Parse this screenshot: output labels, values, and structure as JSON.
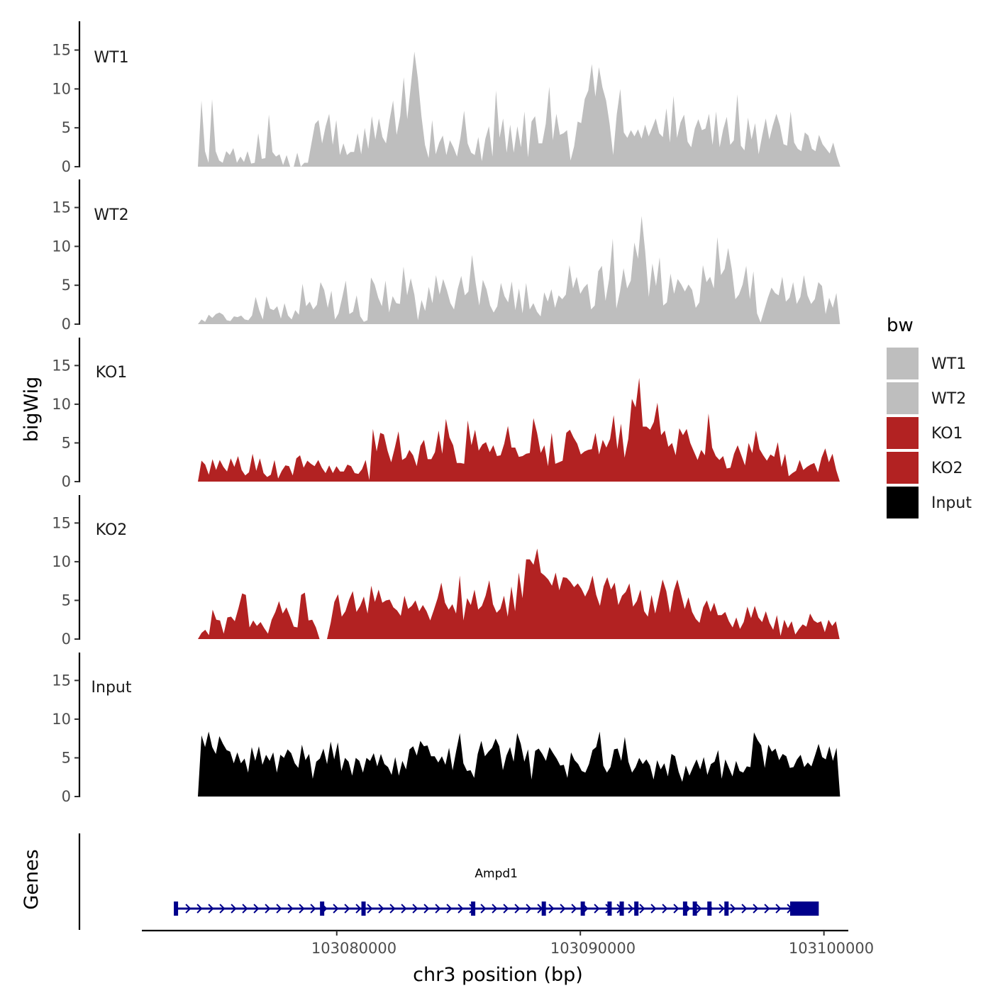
{
  "chart_data": {
    "type": "area",
    "y_axis_title": "bigWig",
    "x_axis_title": "chr3 position (bp)",
    "genes_axis_title": "Genes",
    "xlim": [
      103072000,
      103101000
    ],
    "ylim": [
      0,
      18.7
    ],
    "y_ticks": [
      0,
      5,
      10,
      15
    ],
    "x_ticks": [
      103080000,
      103090000,
      103100000
    ],
    "x_tick_labels": [
      "103080000",
      "103090000",
      "103100000"
    ],
    "legend": {
      "title": "bw",
      "entries": [
        {
          "label": "WT1",
          "color": "#bebebe"
        },
        {
          "label": "WT2",
          "color": "#bebebe"
        },
        {
          "label": "KO1",
          "color": "#b22222"
        },
        {
          "label": "KO2",
          "color": "#b22222"
        },
        {
          "label": "Input",
          "color": "#000000"
        }
      ]
    },
    "series": [
      {
        "name": "WT1",
        "color": "#bebebe",
        "x_start": 103074300,
        "x_end": 103101400,
        "values": [
          0,
          8.5,
          2,
          0.5,
          8.7,
          2,
          0.8,
          0.5,
          2,
          1.5,
          2.4,
          0.5,
          1.3,
          0.6,
          2,
          0.4,
          0.5,
          4.3,
          1,
          1.1,
          6.7,
          1.9,
          1.3,
          1.6,
          0.2,
          1.5,
          0,
          0,
          1.8,
          0,
          0.5,
          0.5,
          3,
          5.5,
          6,
          3,
          5.2,
          6.8,
          2.8,
          6,
          1.5,
          3,
          1.5,
          1.9,
          1.9,
          4.3,
          1.6,
          5,
          2.3,
          6.5,
          3.5,
          6.2,
          3.8,
          3,
          6,
          8.5,
          4.1,
          6.5,
          11.5,
          6.1,
          10.4,
          14.8,
          11.3,
          6.5,
          2.8,
          1.1,
          6,
          1.6,
          3.1,
          4,
          1.5,
          3.4,
          2.5,
          1.3,
          3.8,
          7.2,
          3,
          1.8,
          1.5,
          3.8,
          0.7,
          3.6,
          5.2,
          1.3,
          9.8,
          3.7,
          6.2,
          1.8,
          5.4,
          1.8,
          5.2,
          2.5,
          7.1,
          1.2,
          5.8,
          6.5,
          3,
          3,
          5.5,
          10.3,
          3.4,
          6.8,
          4.1,
          4.3,
          4.7,
          0.8,
          2.6,
          5.8,
          5.6,
          8.7,
          9.8,
          13.2,
          9,
          12.8,
          10.2,
          8.5,
          5.5,
          1.5,
          6.7,
          10,
          4.4,
          3.7,
          4.7,
          3.9,
          4.8,
          3.6,
          5.4,
          3.9,
          5,
          6.2,
          4.3,
          3.8,
          7.5,
          3.1,
          9.1,
          3.7,
          5.7,
          6.7,
          3.2,
          2.5,
          4.9,
          6.1,
          4.7,
          4.9,
          6.8,
          2.8,
          7.1,
          2.5,
          4.8,
          6.4,
          2.8,
          3.4,
          9.3,
          2.7,
          2.1,
          6.3,
          3.5,
          5.6,
          1.6,
          4,
          6.2,
          3.5,
          5.3,
          6.8,
          5.3,
          2.9,
          2.7,
          7.1,
          3.1,
          2.3,
          2,
          4.4,
          4,
          2.3,
          2,
          4.1,
          2.9,
          2.3,
          1.7,
          3.1,
          1.4,
          0,
          0,
          0,
          0,
          0,
          0
        ]
      },
      {
        "name": "WT2",
        "color": "#bebebe",
        "x_start": 103074300,
        "x_end": 103101400,
        "values": [
          0,
          0.6,
          0.3,
          1.2,
          0.8,
          1.3,
          1.5,
          1.2,
          0.5,
          0.4,
          1,
          0.9,
          1.1,
          0.6,
          0.5,
          1.1,
          3.5,
          1.8,
          0.6,
          3.6,
          2,
          1.8,
          2.3,
          0.7,
          2.7,
          1.1,
          0.6,
          1.8,
          1.2,
          5.2,
          2.3,
          2.9,
          1.9,
          2.5,
          5.4,
          4.4,
          2.1,
          4.3,
          0.6,
          1.4,
          3.4,
          5.6,
          1.3,
          1.6,
          3.7,
          1,
          0.3,
          0.5,
          6,
          5.1,
          3.4,
          2.3,
          5.6,
          1.5,
          3.6,
          2.7,
          2.6,
          7.4,
          3.7,
          5.9,
          3.8,
          0.5,
          3.1,
          1.7,
          4.8,
          2.7,
          6.3,
          3.8,
          5.8,
          4.4,
          2.7,
          1.9,
          4.5,
          6.2,
          3.7,
          4.2,
          8.9,
          5.3,
          2.4,
          5.7,
          4.5,
          2.4,
          1.5,
          2.3,
          5.3,
          3.6,
          2.8,
          5.5,
          1.8,
          4.6,
          1.4,
          5.3,
          1.9,
          2.7,
          1.6,
          1,
          4.1,
          2.9,
          4.5,
          2.1,
          3.7,
          3.2,
          3.8,
          7.6,
          4.6,
          6.1,
          3.9,
          4.7,
          5.2,
          1.9,
          2.4,
          6.8,
          7.5,
          3,
          5.8,
          11,
          2,
          4.2,
          7.2,
          4.6,
          5.6,
          10.5,
          8.4,
          13.9,
          9.3,
          3.5,
          7.8,
          4.9,
          8.6,
          2.4,
          2.8,
          6.5,
          3.9,
          5.8,
          5.1,
          4.2,
          5.1,
          4.4,
          2.1,
          2.8,
          7.6,
          5.4,
          6.1,
          4.6,
          11.2,
          6.3,
          7.1,
          9.8,
          7.1,
          3.2,
          3.8,
          5.1,
          7.5,
          3.2,
          6.8,
          1.4,
          0.2,
          1.8,
          3.4,
          4.7,
          4,
          3.7,
          6.1,
          2.9,
          3.4,
          5.4,
          2.6,
          3.5,
          6.3,
          3.7,
          2.6,
          3.2,
          5.4,
          4.9,
          1.3,
          3.4,
          2.1,
          4,
          0,
          0,
          0,
          0,
          0,
          0
        ]
      },
      {
        "name": "KO1",
        "color": "#b22222",
        "x_start": 103074300,
        "x_end": 103101400,
        "values": [
          0,
          2.7,
          2.2,
          0.9,
          2.9,
          1.5,
          2.8,
          1.9,
          1.3,
          3,
          1.9,
          3.3,
          1.5,
          0.8,
          1.2,
          3.6,
          1.4,
          3,
          1.1,
          0.6,
          0.9,
          2.8,
          0.4,
          1.4,
          2.1,
          2,
          0.8,
          3,
          3.4,
          1.8,
          2.7,
          2.3,
          2,
          2.8,
          1.8,
          1.1,
          2.1,
          1.1,
          2,
          1.3,
          1.3,
          2.2,
          2,
          1.1,
          1,
          1.6,
          2.8,
          0.2,
          6.8,
          3.9,
          6.3,
          6.1,
          4,
          2.5,
          4.4,
          6.5,
          2.8,
          3.1,
          4.1,
          3.4,
          2,
          4.6,
          5.4,
          2.9,
          2.9,
          3.8,
          6.6,
          3.6,
          8.1,
          5.7,
          4.7,
          2.4,
          2.4,
          2.3,
          7.9,
          4.7,
          6.7,
          4,
          4.8,
          5.1,
          3.8,
          4.7,
          3.3,
          3.4,
          4.9,
          7.2,
          4.4,
          4.4,
          3.2,
          3.3,
          3.6,
          3.7,
          8.2,
          6.3,
          3.7,
          4.7,
          2,
          6.3,
          2.3,
          2.5,
          2.7,
          6.3,
          6.7,
          5.7,
          4.9,
          3.5,
          3.9,
          4.1,
          4.2,
          6.3,
          3.5,
          5.4,
          4.4,
          5.5,
          8.6,
          4.2,
          7.5,
          3.1,
          5.5,
          10.7,
          9.6,
          13.4,
          7.1,
          7.1,
          6.7,
          7.7,
          10.2,
          6,
          6.6,
          4.5,
          5,
          3.4,
          6.9,
          6,
          6.8,
          5,
          3.9,
          2.8,
          4.1,
          3.4,
          8.8,
          4.4,
          3.3,
          2.8,
          3.3,
          1.7,
          1.8,
          3.6,
          4.7,
          3.4,
          2.1,
          5,
          3.7,
          6.6,
          4.2,
          3.4,
          2.7,
          3.5,
          3.2,
          5.1,
          1.9,
          3.6,
          0.7,
          1.1,
          1.4,
          2.8,
          1.5,
          1.9,
          2.2,
          2.4,
          1.2,
          3.1,
          4.3,
          2.5,
          3.6,
          1.5,
          0,
          0,
          0,
          0,
          0,
          0
        ]
      },
      {
        "name": "KO2",
        "color": "#b22222",
        "x_start": 103074300,
        "x_end": 103101400,
        "values": [
          0,
          0.8,
          1.2,
          0.5,
          3.8,
          2.5,
          2.4,
          0.7,
          2.8,
          2.9,
          2.3,
          4,
          5.9,
          5.7,
          1.5,
          2.4,
          1.7,
          2.2,
          1.4,
          0.7,
          2.5,
          3.5,
          4.9,
          3.3,
          4.1,
          2.9,
          1.6,
          1.5,
          5.7,
          6,
          2.4,
          2.5,
          1.5,
          0,
          0,
          0,
          2.1,
          4.8,
          5.8,
          2.9,
          3.6,
          5.1,
          6.2,
          3.5,
          4.3,
          5.5,
          3.3,
          6.9,
          4.8,
          6.4,
          4.7,
          5,
          5.1,
          4.1,
          3.7,
          3,
          5.6,
          3.9,
          4.3,
          5,
          3.6,
          4.4,
          3.6,
          2.4,
          3.8,
          5.3,
          7.3,
          4.7,
          3.8,
          4.5,
          3.3,
          8.2,
          2.4,
          5.3,
          4.4,
          6.4,
          3.8,
          4.3,
          5.6,
          7.6,
          4.5,
          3.4,
          3.9,
          5.6,
          2.9,
          6.8,
          3.6,
          8.6,
          5.3,
          10.3,
          10.3,
          9.6,
          11.7,
          8.6,
          8.2,
          7.7,
          6.9,
          8.6,
          6.3,
          8,
          7.9,
          7.4,
          6.7,
          7.2,
          6.5,
          5.5,
          6.5,
          8.2,
          5.7,
          4.3,
          6.8,
          8,
          6.4,
          7.3,
          4.4,
          5.6,
          6.1,
          7.2,
          4.2,
          4.9,
          6.4,
          3.6,
          2.9,
          5.7,
          3.3,
          5.5,
          7.7,
          6.2,
          3.4,
          6.2,
          7.7,
          5.8,
          3.9,
          5.4,
          3.5,
          2.6,
          2.1,
          4.1,
          5,
          3.5,
          4.7,
          3.1,
          3.1,
          3.5,
          2.3,
          1.5,
          2.8,
          1.3,
          2.2,
          4.2,
          2.7,
          4.3,
          2.8,
          2.2,
          3.6,
          2.1,
          1.2,
          3.1,
          0.4,
          2.5,
          1.4,
          2.3,
          0.6,
          1.3,
          1.9,
          1.6,
          3.3,
          2.4,
          2.1,
          2.3,
          0.9,
          2.5,
          1.7,
          2.3,
          0,
          0,
          0,
          0,
          0,
          0
        ]
      },
      {
        "name": "Input",
        "color": "#000000",
        "x_start": 103074300,
        "x_end": 103101400,
        "values": [
          0,
          7.9,
          6.4,
          8.4,
          6.4,
          5.5,
          7.8,
          6.8,
          6,
          5.8,
          4.3,
          5.7,
          4.3,
          4.9,
          3.1,
          6.4,
          4.6,
          6.5,
          4.1,
          5.4,
          4.6,
          5.7,
          3.1,
          5.4,
          5,
          6.1,
          5.6,
          4.3,
          3.7,
          6.7,
          4.7,
          5.5,
          2.3,
          4.5,
          4.9,
          6.2,
          4.2,
          7.1,
          4.8,
          7,
          3.3,
          5,
          4.5,
          2.7,
          5,
          4.6,
          3.1,
          5,
          4.6,
          5.6,
          3.9,
          5.5,
          4.2,
          3.8,
          2.8,
          5.1,
          2.7,
          4.6,
          3.5,
          6.1,
          6.5,
          5.3,
          7.2,
          6.5,
          6.6,
          5.2,
          5.2,
          4.4,
          5.2,
          4.1,
          6.3,
          3.4,
          5.9,
          8.2,
          4.3,
          3.3,
          3.4,
          2.4,
          5.5,
          7.2,
          5.2,
          5.8,
          6.3,
          7.5,
          6.5,
          3.4,
          5.3,
          6.4,
          4.5,
          8.2,
          6.8,
          4.5,
          6.1,
          2.2,
          5.9,
          6.2,
          5.5,
          4.6,
          6.4,
          5.6,
          4.9,
          4,
          4.1,
          2.4,
          5.7,
          4.7,
          4.2,
          3.3,
          3.1,
          4.2,
          6,
          6.4,
          8.4,
          4,
          3.1,
          3.8,
          6.1,
          6.2,
          4.6,
          7.7,
          4.5,
          3.1,
          3.8,
          5,
          4.2,
          4.8,
          4,
          2.2,
          4.7,
          3.5,
          4.3,
          2.6,
          5.5,
          5.2,
          3.2,
          1.9,
          4,
          2.7,
          3.8,
          4.8,
          3.5,
          5.1,
          2.8,
          4.2,
          4.5,
          6,
          2.3,
          4.8,
          3.7,
          2.6,
          4.6,
          3.3,
          3.1,
          3.9,
          3.8,
          8.3,
          7.3,
          6.6,
          3.7,
          6.7,
          5.8,
          6.2,
          4.7,
          5.5,
          5.2,
          3.7,
          3.8,
          4.8,
          5.4,
          3.8,
          4.4,
          3.9,
          5.3,
          6.8,
          5.1,
          4.8,
          6.5,
          4.6,
          6.3,
          0,
          0,
          0,
          0,
          0,
          0
        ]
      }
    ],
    "genes": [
      {
        "name": "Ampd1",
        "strand": "+",
        "start": 103073400,
        "end": 103099700,
        "exons": [
          103073400,
          103079400,
          103081100,
          103085600,
          103088500,
          103090100,
          103091200,
          103091700,
          103092300,
          103094300,
          103094700,
          103095300,
          103096000,
          103098700,
          103099000,
          103099400
        ]
      }
    ]
  }
}
